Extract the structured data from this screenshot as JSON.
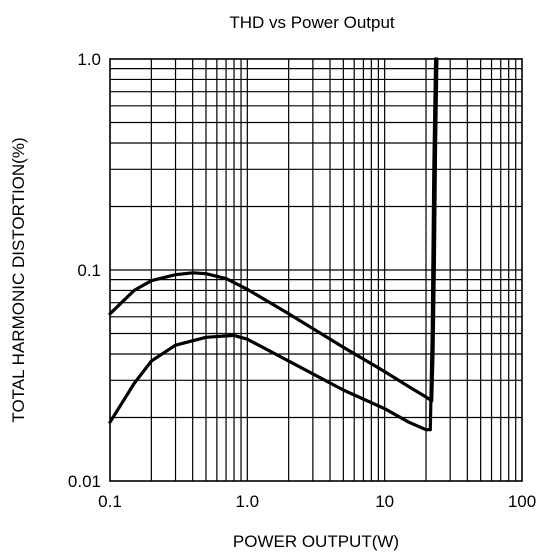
{
  "chart_data": {
    "type": "line",
    "title": "THD vs Power Output",
    "xlabel": "POWER OUTPUT(W)",
    "ylabel": "TOTAL HARMONIC DISTORTION(%)",
    "xscale": "log",
    "yscale": "log",
    "xlim": [
      0.1,
      100
    ],
    "ylim": [
      0.01,
      1.0
    ],
    "grid": true,
    "x_tick_labels": [
      "0.1",
      "1.0",
      "10",
      "100"
    ],
    "y_tick_labels": [
      "0.01",
      "0.1",
      "1.0"
    ],
    "series": [
      {
        "points": [
          [
            0.1,
            0.062
          ],
          [
            0.15,
            0.08
          ],
          [
            0.2,
            0.089
          ],
          [
            0.3,
            0.095
          ],
          [
            0.4,
            0.097
          ],
          [
            0.5,
            0.096
          ],
          [
            0.7,
            0.091
          ],
          [
            1.0,
            0.081
          ],
          [
            2.0,
            0.062
          ],
          [
            5.0,
            0.043
          ],
          [
            10,
            0.033
          ],
          [
            15,
            0.028
          ],
          [
            20,
            0.025
          ],
          [
            22,
            0.024
          ],
          [
            22.5,
            0.04
          ],
          [
            23,
            0.1
          ],
          [
            23.5,
            0.4
          ],
          [
            24,
            1.0
          ]
        ]
      },
      {
        "points": [
          [
            0.1,
            0.019
          ],
          [
            0.15,
            0.029
          ],
          [
            0.2,
            0.037
          ],
          [
            0.3,
            0.044
          ],
          [
            0.5,
            0.048
          ],
          [
            0.8,
            0.049
          ],
          [
            1.0,
            0.047
          ],
          [
            2.0,
            0.037
          ],
          [
            5.0,
            0.027
          ],
          [
            10,
            0.022
          ],
          [
            15,
            0.019
          ],
          [
            20,
            0.0175
          ],
          [
            21.5,
            0.0175
          ],
          [
            22.2,
            0.05
          ],
          [
            22.8,
            0.3
          ],
          [
            23.5,
            1.0
          ]
        ]
      }
    ]
  }
}
